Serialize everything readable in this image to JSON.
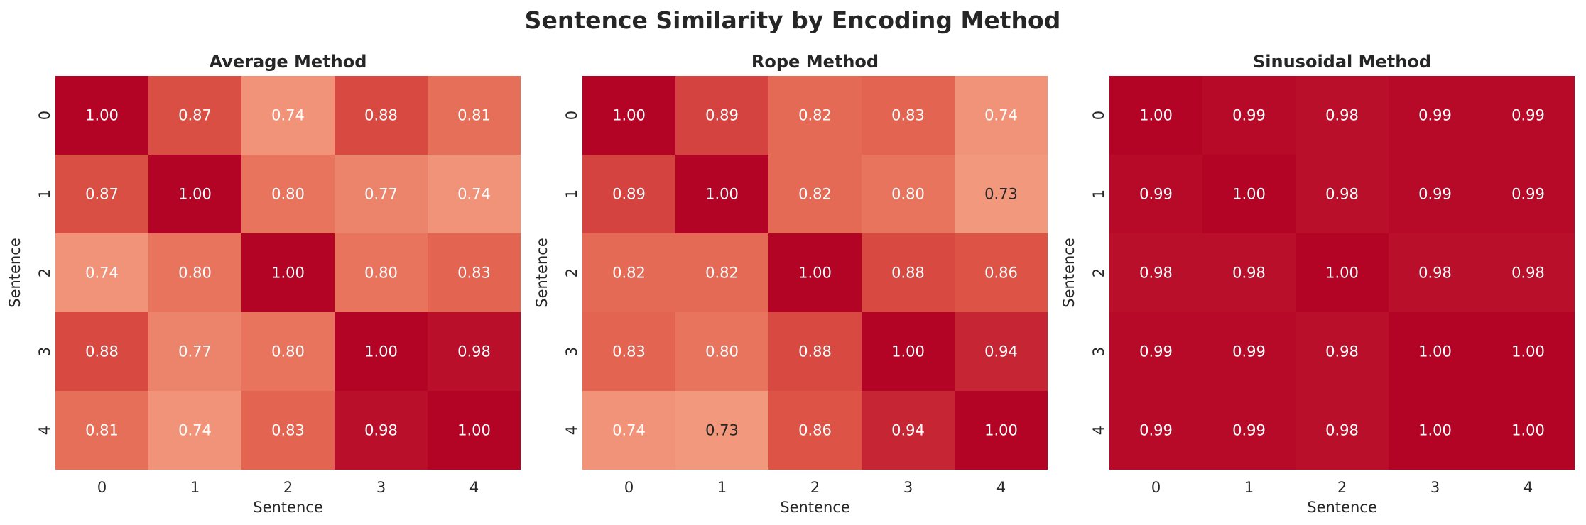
{
  "chart_data": {
    "type": "heatmap",
    "title": "Sentence Similarity by Encoding Method",
    "color_scale": {
      "min": 0.7,
      "max": 1.0,
      "low": "#f7a889",
      "mid": "#e05a48",
      "high": "#b40426"
    },
    "value_format": "2 decimals",
    "panels": [
      {
        "title": "Average Method",
        "xlabel": "Sentence",
        "ylabel": "Sentence",
        "x_ticks": [
          "0",
          "1",
          "2",
          "3",
          "4"
        ],
        "y_ticks": [
          "0",
          "1",
          "2",
          "3",
          "4"
        ],
        "values": [
          [
            1.0,
            0.87,
            0.74,
            0.88,
            0.81
          ],
          [
            0.87,
            1.0,
            0.8,
            0.77,
            0.74
          ],
          [
            0.74,
            0.8,
            1.0,
            0.8,
            0.83
          ],
          [
            0.88,
            0.77,
            0.8,
            1.0,
            0.98
          ],
          [
            0.81,
            0.74,
            0.83,
            0.98,
            1.0
          ]
        ]
      },
      {
        "title": "Rope Method",
        "xlabel": "Sentence",
        "ylabel": "Sentence",
        "x_ticks": [
          "0",
          "1",
          "2",
          "3",
          "4"
        ],
        "y_ticks": [
          "0",
          "1",
          "2",
          "3",
          "4"
        ],
        "values": [
          [
            1.0,
            0.89,
            0.82,
            0.83,
            0.74
          ],
          [
            0.89,
            1.0,
            0.82,
            0.8,
            0.73
          ],
          [
            0.82,
            0.82,
            1.0,
            0.88,
            0.86
          ],
          [
            0.83,
            0.8,
            0.88,
            1.0,
            0.94
          ],
          [
            0.74,
            0.73,
            0.86,
            0.94,
            1.0
          ]
        ]
      },
      {
        "title": "Sinusoidal Method",
        "xlabel": "Sentence",
        "ylabel": "Sentence",
        "x_ticks": [
          "0",
          "1",
          "2",
          "3",
          "4"
        ],
        "y_ticks": [
          "0",
          "1",
          "2",
          "3",
          "4"
        ],
        "values": [
          [
            1.0,
            0.99,
            0.98,
            0.99,
            0.99
          ],
          [
            0.99,
            1.0,
            0.98,
            0.99,
            0.99
          ],
          [
            0.98,
            0.98,
            1.0,
            0.98,
            0.98
          ],
          [
            0.99,
            0.99,
            0.98,
            1.0,
            1.0
          ],
          [
            0.99,
            0.99,
            0.98,
            1.0,
            1.0
          ]
        ]
      }
    ]
  }
}
